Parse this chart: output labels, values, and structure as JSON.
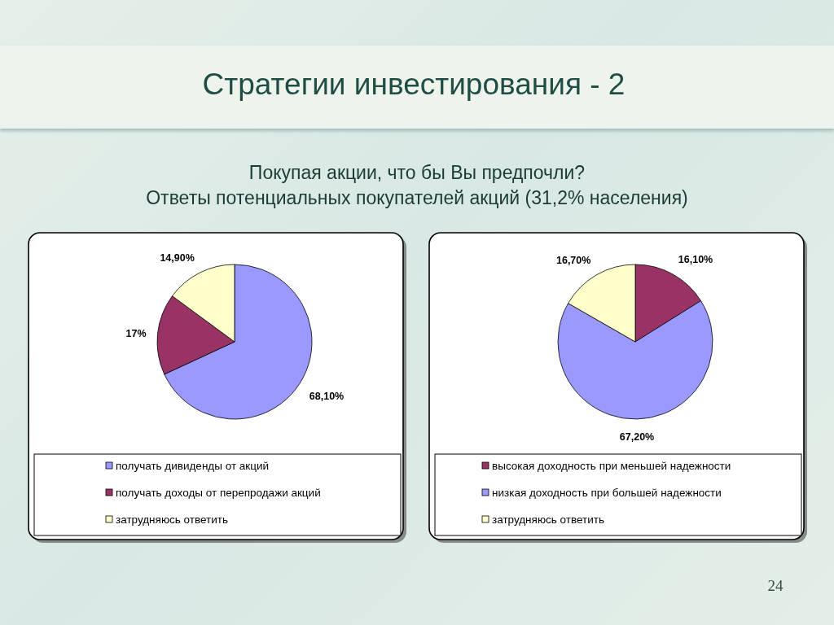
{
  "chart_data": [
    {
      "type": "other",
      "title": "Стратегии инвестирования - 2",
      "subtitle": "Покупая акции, что бы Вы предпочли?\nОтветы потенциальных покупателей акций (31,2% населения)",
      "annotations": [
        "24"
      ]
    },
    {
      "type": "pie",
      "categories": [
        "получать дивиденды от акций",
        "получать доходы от перепродажи акций",
        "затрудняюсь ответить"
      ],
      "values": [
        68.1,
        17,
        14.9
      ],
      "colors": [
        "#9999ff",
        "#993366",
        "#ffffcc"
      ],
      "value_labels": [
        "68,10%",
        "17%",
        "14,90%"
      ],
      "legend": "bottom"
    },
    {
      "type": "pie",
      "categories": [
        "высокая доходность при меньшей надежности",
        "низкая доходность при большей надежности",
        "затрудняюсь ответить"
      ],
      "values": [
        16.1,
        67.2,
        16.7
      ],
      "colors": [
        "#993366",
        "#9999ff",
        "#ffffcc"
      ],
      "value_labels": [
        "16,10%",
        "67,20%",
        "16,70%"
      ],
      "legend": "bottom"
    }
  ]
}
